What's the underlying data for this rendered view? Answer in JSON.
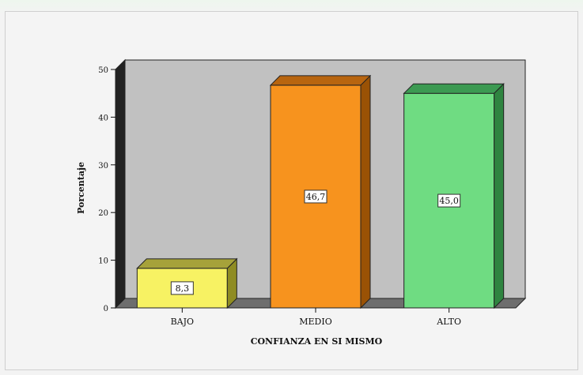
{
  "chart_data": {
    "type": "bar",
    "categories": [
      "BAJO",
      "MEDIO",
      "ALTO"
    ],
    "values": [
      8.3,
      46.7,
      45.0
    ],
    "data_labels": [
      "8,3",
      "46,7",
      "45,0"
    ],
    "xlabel": "CONFIANZA EN SI MISMO",
    "ylabel": "Porcentaje",
    "ylim": [
      0,
      50
    ],
    "yticks": [
      0,
      10,
      20,
      30,
      40,
      50
    ],
    "grid": false,
    "colors": {
      "bars": [
        "#f7f263",
        "#f7931e",
        "#6fdc82"
      ],
      "bar_sides": [
        "#8f8c22",
        "#9a5205",
        "#2f8440"
      ],
      "bar_tops": [
        "#a6a23a",
        "#b8650f",
        "#3c9a52"
      ],
      "plot_back": "#c1c1c1",
      "plot_floor": "#6e6e6e"
    }
  }
}
